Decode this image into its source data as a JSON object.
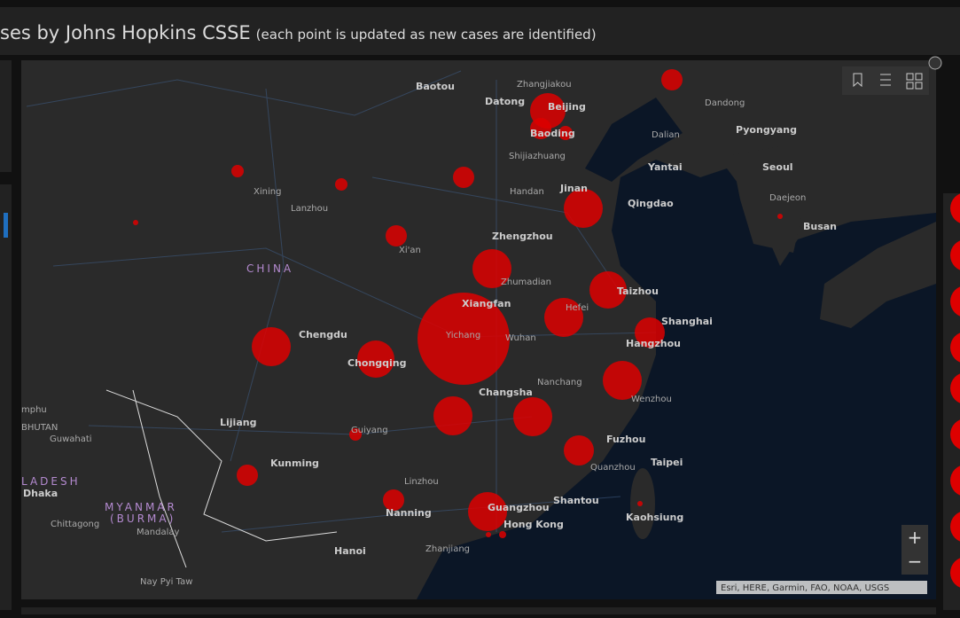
{
  "header": {
    "title": "ses by Johns Hopkins CSSE",
    "subtitle": "(each point is updated as new cases are identified)"
  },
  "map": {
    "countries": [
      "CHINA",
      "MYANMAR",
      "(BURMA)",
      "LADESH",
      "BHUTAN"
    ],
    "cities": [
      "Baotou",
      "Zhangjiakou",
      "Datong",
      "Beijing",
      "Baoding",
      "Dalian",
      "Dandong",
      "Pyongyang",
      "Shijiazhuang",
      "Yantai",
      "Seoul",
      "Xining",
      "Lanzhou",
      "Handan",
      "Jinan",
      "Qingdao",
      "Daejeon",
      "Busan",
      "Xi'an",
      "Zhengzhou",
      "Zhumadian",
      "Taizhou",
      "Xiangfan",
      "Hefei",
      "Chengdu",
      "Yichang",
      "Wuhan",
      "Shanghai",
      "Chongqing",
      "Hangzhou",
      "Nanchang",
      "Changsha",
      "Wenzhou",
      "mphu",
      "Guwahati",
      "Lijiang",
      "Guiyang",
      "Fuzhou",
      "Kunming",
      "Quanzhou",
      "Taipei",
      "Dhaka",
      "Linzhou",
      "Nanning",
      "Guangzhou",
      "Shantou",
      "Chittagong",
      "Mandalay",
      "Hong Kong",
      "Kaohsiung",
      "Hanoi",
      "Zhanjiang",
      "Nay Pyi Taw"
    ],
    "attribution": "Esri, HERE, Garmin, FAO, NOAA, USGS",
    "zoom_in": "+",
    "zoom_out": "−"
  }
}
